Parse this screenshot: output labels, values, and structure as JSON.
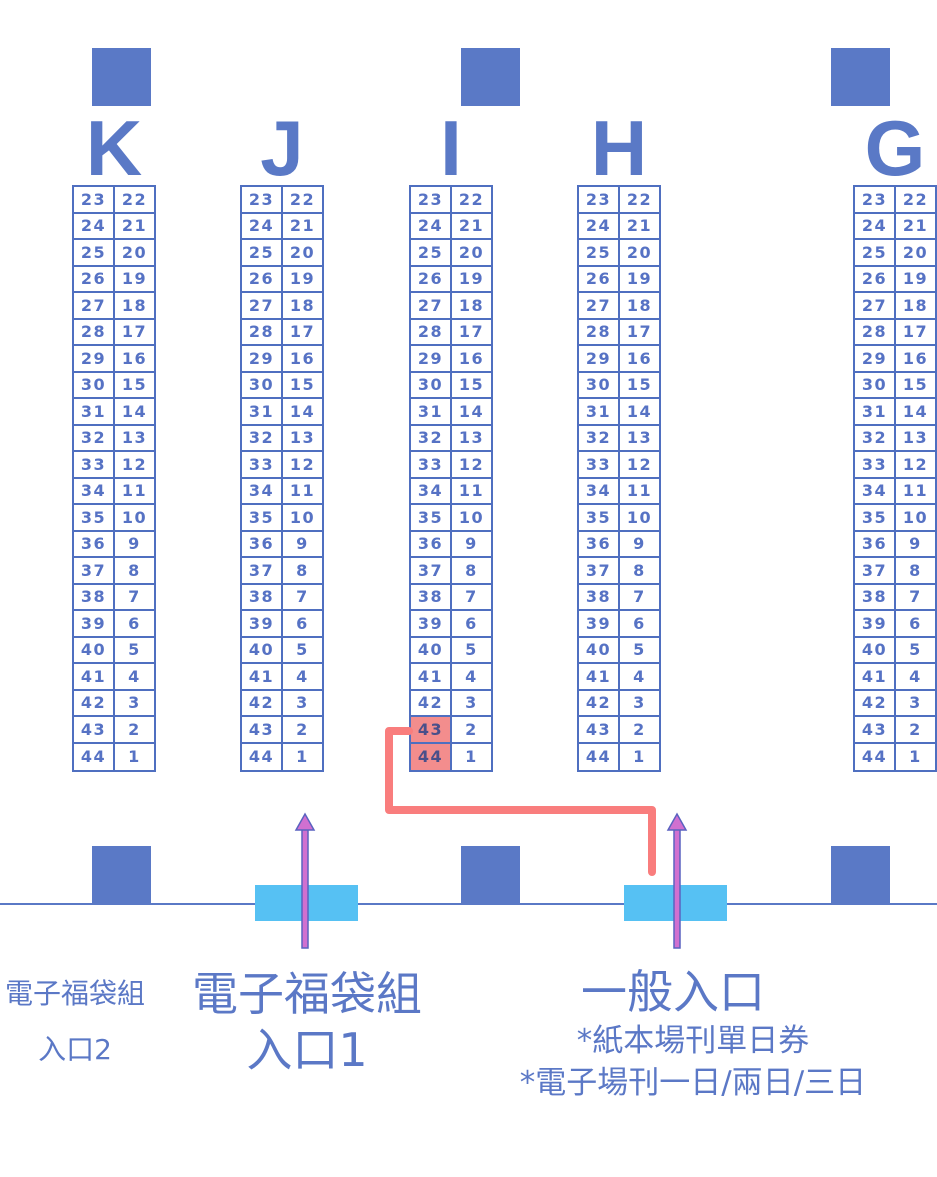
{
  "colors": {
    "pillar": "#5a79c6",
    "door": "#56c1f3",
    "route": "#f97d7d",
    "highlight": "#f38d8d",
    "arrow": "#d070d0"
  },
  "sections": [
    {
      "letter": "K",
      "highlighted": []
    },
    {
      "letter": "J",
      "highlighted": []
    },
    {
      "letter": "I",
      "highlighted": [
        43,
        44
      ]
    },
    {
      "letter": "H",
      "highlighted": []
    },
    {
      "letter": "G",
      "highlighted": []
    }
  ],
  "seat_rows": [
    [
      23,
      22
    ],
    [
      24,
      21
    ],
    [
      25,
      20
    ],
    [
      26,
      19
    ],
    [
      27,
      18
    ],
    [
      28,
      17
    ],
    [
      29,
      16
    ],
    [
      30,
      15
    ],
    [
      31,
      14
    ],
    [
      32,
      13
    ],
    [
      33,
      12
    ],
    [
      34,
      11
    ],
    [
      35,
      10
    ],
    [
      36,
      9
    ],
    [
      37,
      8
    ],
    [
      38,
      7
    ],
    [
      39,
      6
    ],
    [
      40,
      5
    ],
    [
      41,
      4
    ],
    [
      42,
      3
    ],
    [
      43,
      2
    ],
    [
      44,
      1
    ]
  ],
  "entrances": {
    "bag2": {
      "line1": "電子福袋組",
      "line2": "入口2"
    },
    "bag1": {
      "line1": "電子福袋組",
      "line2": "入口1"
    },
    "general": {
      "title": "一般入口",
      "note1": "*紙本場刊單日券",
      "note2": "*電子場刊一日/兩日/三日"
    }
  },
  "icons": {
    "entry_arrow": "up-arrow-icon",
    "pillar": "square-pillar",
    "route": "route-path"
  }
}
